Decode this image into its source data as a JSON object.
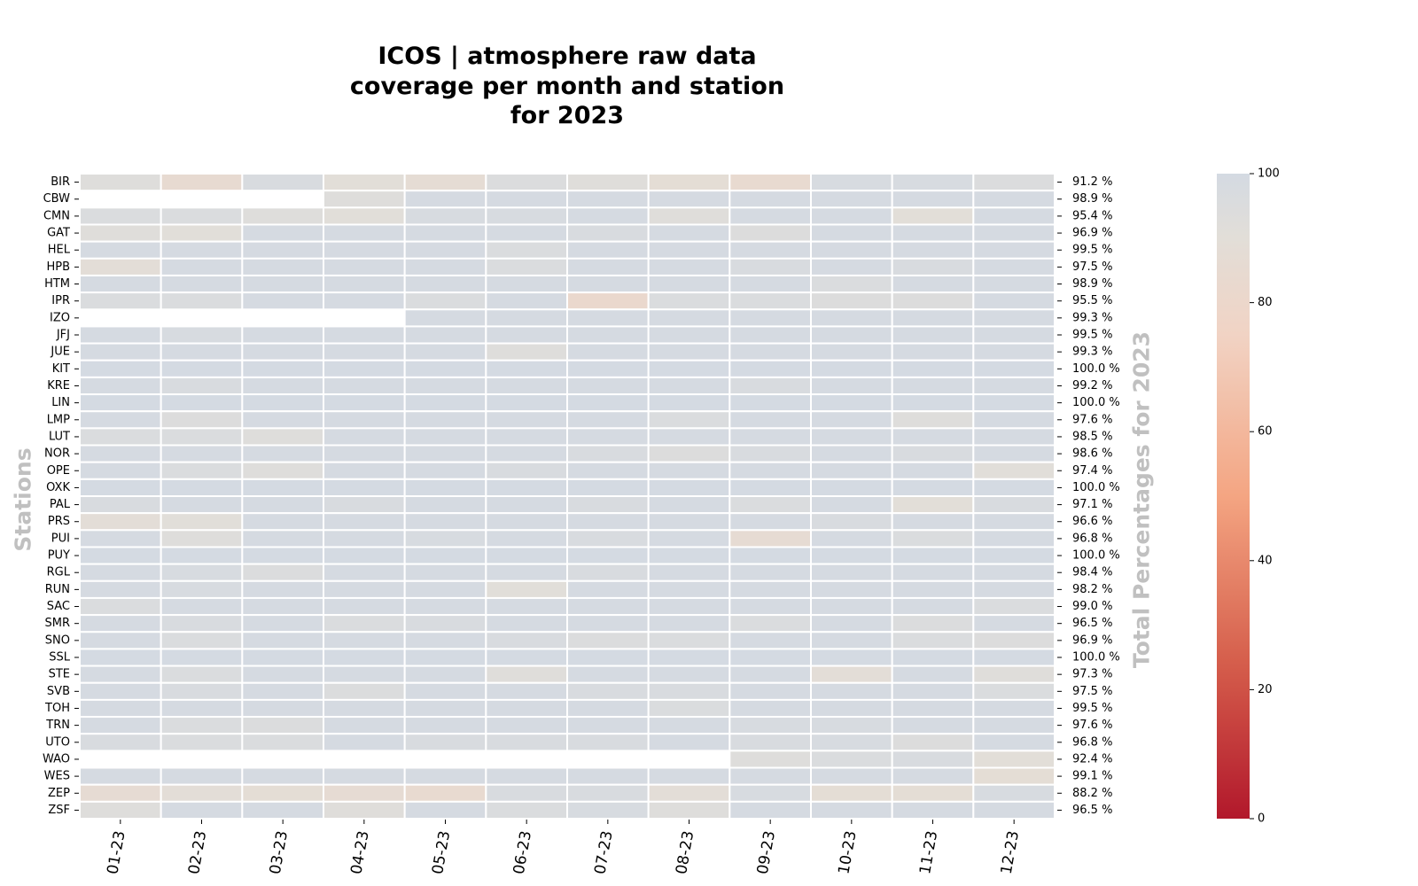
{
  "chart_data": {
    "type": "heatmap",
    "title": [
      "ICOS | atmosphere raw data",
      "coverage per month and station",
      "for 2023"
    ],
    "ylabel": "Stations",
    "right_label": "Total Percentages for 2023",
    "colorbar": {
      "vmin": 0,
      "vmax": 100,
      "ticks": [
        0,
        20,
        40,
        60,
        80,
        100
      ],
      "colormap": "RdBu"
    },
    "months": [
      "01-23",
      "02-23",
      "03-23",
      "04-23",
      "05-23",
      "06-23",
      "07-23",
      "08-23",
      "09-23",
      "10-23",
      "11-23",
      "12-23"
    ],
    "stations": [
      "BIR",
      "CBW",
      "CMN",
      "GAT",
      "HEL",
      "HPB",
      "HTM",
      "IPR",
      "IZO",
      "JFJ",
      "JUE",
      "KIT",
      "KRE",
      "LIN",
      "LMP",
      "LUT",
      "NOR",
      "OPE",
      "OXK",
      "PAL",
      "PRS",
      "PUI",
      "PUY",
      "RGL",
      "RUN",
      "SAC",
      "SMR",
      "SNO",
      "SSL",
      "STE",
      "SVB",
      "TOH",
      "TRN",
      "UTO",
      "WAO",
      "WES",
      "ZEP",
      "ZSF"
    ],
    "totals": [
      "91.2 %",
      "98.9 %",
      "95.4 %",
      "96.9 %",
      "99.5 %",
      "97.5 %",
      "98.9 %",
      "95.5 %",
      "99.3 %",
      "99.5 %",
      "99.3 %",
      "100.0 %",
      "99.2 %",
      "100.0 %",
      "97.6 %",
      "98.5 %",
      "98.6 %",
      "97.4 %",
      "100.0 %",
      "97.1 %",
      "96.6 %",
      "96.8 %",
      "100.0 %",
      "98.4 %",
      "98.2 %",
      "99.0 %",
      "96.5 %",
      "96.9 %",
      "100.0 %",
      "97.3 %",
      "97.5 %",
      "99.5 %",
      "97.6 %",
      "96.8 %",
      "92.4 %",
      "99.1 %",
      "88.2 %",
      "96.5 %"
    ],
    "values": [
      [
        93,
        85,
        97,
        90,
        87,
        95,
        92,
        88,
        84,
        98,
        98,
        95
      ],
      [
        null,
        null,
        null,
        93,
        99,
        99,
        99,
        99,
        99,
        99,
        99,
        99
      ],
      [
        96,
        96,
        93,
        91,
        98,
        98,
        99,
        92,
        99,
        99,
        90,
        99
      ],
      [
        92,
        91,
        99,
        99,
        99,
        99,
        97,
        99,
        94,
        99,
        99,
        99
      ],
      [
        99,
        99,
        99,
        99,
        99,
        96,
        99,
        99,
        99,
        99,
        99,
        99
      ],
      [
        89,
        99,
        99,
        99,
        99,
        96,
        99,
        99,
        97,
        99,
        97,
        99
      ],
      [
        99,
        99,
        99,
        99,
        99,
        99,
        99,
        99,
        99,
        96,
        99,
        99
      ],
      [
        96,
        96,
        99,
        99,
        96,
        99,
        82,
        96,
        96,
        94,
        94,
        99
      ],
      [
        null,
        null,
        null,
        null,
        99,
        99,
        99,
        99,
        99,
        99,
        99,
        99
      ],
      [
        99,
        98,
        99,
        99,
        99,
        99,
        99,
        99,
        99,
        99,
        99,
        99
      ],
      [
        99,
        99,
        99,
        99,
        99,
        93,
        99,
        99,
        99,
        99,
        99,
        99
      ],
      [
        100,
        100,
        100,
        100,
        100,
        100,
        100,
        100,
        100,
        100,
        100,
        100
      ],
      [
        99,
        97,
        99,
        99,
        99,
        99,
        99,
        99,
        97,
        99,
        99,
        99
      ],
      [
        100,
        100,
        100,
        100,
        100,
        100,
        100,
        100,
        100,
        100,
        100,
        100
      ],
      [
        99,
        94,
        99,
        99,
        99,
        99,
        99,
        96,
        99,
        99,
        93,
        99
      ],
      [
        96,
        96,
        93,
        99,
        99,
        99,
        99,
        99,
        99,
        99,
        99,
        99
      ],
      [
        99,
        99,
        99,
        99,
        99,
        99,
        97,
        94,
        97,
        99,
        97,
        99
      ],
      [
        99,
        96,
        93,
        99,
        99,
        97,
        99,
        99,
        99,
        99,
        99,
        91
      ],
      [
        100,
        100,
        100,
        100,
        100,
        100,
        100,
        100,
        100,
        100,
        100,
        100
      ],
      [
        97,
        99,
        99,
        97,
        99,
        99,
        97,
        99,
        96,
        99,
        90,
        97
      ],
      [
        89,
        91,
        99,
        99,
        99,
        99,
        99,
        99,
        99,
        97,
        99,
        99
      ],
      [
        99,
        93,
        99,
        99,
        98,
        99,
        97,
        99,
        86,
        99,
        96,
        99
      ],
      [
        100,
        100,
        100,
        100,
        100,
        100,
        100,
        100,
        100,
        100,
        100,
        100
      ],
      [
        99,
        98,
        95,
        99,
        99,
        99,
        97,
        99,
        99,
        99,
        99,
        99
      ],
      [
        99,
        98,
        99,
        99,
        99,
        91,
        99,
        99,
        99,
        99,
        99,
        99
      ],
      [
        96,
        99,
        99,
        99,
        99,
        99,
        99,
        99,
        99,
        99,
        99,
        96
      ],
      [
        99,
        97,
        99,
        96,
        97,
        99,
        99,
        99,
        96,
        99,
        95,
        99
      ],
      [
        99,
        96,
        99,
        99,
        99,
        97,
        95,
        96,
        99,
        99,
        96,
        94
      ],
      [
        100,
        100,
        100,
        100,
        100,
        100,
        100,
        100,
        100,
        100,
        100,
        100
      ],
      [
        99,
        96,
        99,
        99,
        99,
        92,
        99,
        99,
        99,
        89,
        99,
        92
      ],
      [
        99,
        97,
        99,
        95,
        99,
        99,
        97,
        97,
        99,
        99,
        99,
        96
      ],
      [
        99,
        99,
        99,
        99,
        99,
        99,
        99,
        96,
        99,
        99,
        99,
        99
      ],
      [
        99,
        96,
        95,
        99,
        99,
        99,
        99,
        99,
        98,
        98,
        99,
        99
      ],
      [
        97,
        96,
        96,
        99,
        97,
        97,
        97,
        99,
        97,
        98,
        94,
        99
      ],
      [
        null,
        null,
        null,
        null,
        null,
        null,
        null,
        null,
        93,
        96,
        97,
        90
      ],
      [
        99,
        99,
        99,
        99,
        99,
        99,
        99,
        99,
        99,
        99,
        99,
        88
      ],
      [
        86,
        89,
        88,
        86,
        84,
        97,
        97,
        89,
        98,
        88,
        88,
        98
      ],
      [
        93,
        99,
        99,
        92,
        99,
        96,
        98,
        93,
        99,
        99,
        99,
        99
      ]
    ]
  }
}
